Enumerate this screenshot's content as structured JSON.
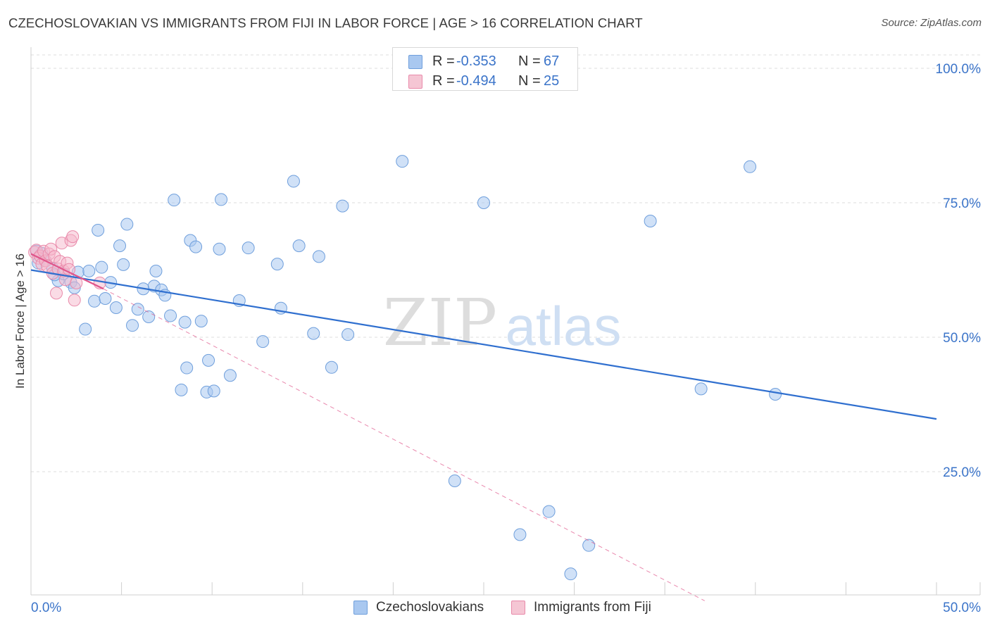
{
  "header": {
    "title": "CZECHOSLOVAKIAN VS IMMIGRANTS FROM FIJI IN LABOR FORCE | AGE > 16 CORRELATION CHART",
    "source": "Source: ZipAtlas.com"
  },
  "watermark": {
    "zip": "ZIP",
    "atlas": "atlas"
  },
  "legend": {
    "rows": [
      {
        "r_label": "R = ",
        "r_value": "-0.353",
        "n_label": "N = ",
        "n_value": "67"
      },
      {
        "r_label": "R = ",
        "r_value": "-0.494",
        "n_label": "N = ",
        "n_value": "25"
      }
    ]
  },
  "colors": {
    "blue_fill": "#a9c8f0",
    "blue_stroke": "#6f9fdc",
    "blue_line": "#2f6fcf",
    "pink_fill": "#f5b8cb",
    "pink_stroke": "#e98aaa",
    "pink_line": "#e0558a",
    "axis_label": "#3b74c9",
    "grid": "#dcdcdc"
  },
  "chart_data": {
    "type": "scatter",
    "title": "CZECHOSLOVAKIAN VS IMMIGRANTS FROM FIJI IN LABOR FORCE | AGE > 16 CORRELATION CHART",
    "xlabel": "",
    "ylabel": "In Labor Force | Age > 16",
    "xlim": [
      0,
      50
    ],
    "ylim": [
      0,
      105
    ],
    "x_tick_labels": [
      "0.0%",
      "50.0%"
    ],
    "y_ticks": [
      25,
      50,
      75,
      100
    ],
    "y_tick_labels": [
      "25.0%",
      "50.0%",
      "75.0%",
      "100.0%"
    ],
    "grid": true,
    "legend_position": "top-center",
    "series": [
      {
        "name": "Czechoslovakians",
        "color": "#a9c8f0",
        "points": [
          [
            0.4,
            63.8
          ],
          [
            0.8,
            64.2
          ],
          [
            1.2,
            62.8
          ],
          [
            1.5,
            60.5
          ],
          [
            1.8,
            61.8
          ],
          [
            2.2,
            60.2
          ],
          [
            2.4,
            59.2
          ],
          [
            2.6,
            62.1
          ],
          [
            3.0,
            51.5
          ],
          [
            3.2,
            62.3
          ],
          [
            3.5,
            56.7
          ],
          [
            3.7,
            69.9
          ],
          [
            3.9,
            63.0
          ],
          [
            4.1,
            57.2
          ],
          [
            4.4,
            60.2
          ],
          [
            4.7,
            55.5
          ],
          [
            4.9,
            67.0
          ],
          [
            5.1,
            63.5
          ],
          [
            5.3,
            71.0
          ],
          [
            5.6,
            52.2
          ],
          [
            5.9,
            55.2
          ],
          [
            6.2,
            59.0
          ],
          [
            6.5,
            53.8
          ],
          [
            6.8,
            59.5
          ],
          [
            6.9,
            62.3
          ],
          [
            7.2,
            58.8
          ],
          [
            7.4,
            57.8
          ],
          [
            7.7,
            54.0
          ],
          [
            7.9,
            75.5
          ],
          [
            8.3,
            40.2
          ],
          [
            8.5,
            52.8
          ],
          [
            8.6,
            44.3
          ],
          [
            8.8,
            68.0
          ],
          [
            9.1,
            66.8
          ],
          [
            9.4,
            53.0
          ],
          [
            9.7,
            39.8
          ],
          [
            9.8,
            45.7
          ],
          [
            10.1,
            40.0
          ],
          [
            10.4,
            66.4
          ],
          [
            10.5,
            75.6
          ],
          [
            11.0,
            42.9
          ],
          [
            11.5,
            56.8
          ],
          [
            12.0,
            66.6
          ],
          [
            12.8,
            49.2
          ],
          [
            13.6,
            63.6
          ],
          [
            13.8,
            55.4
          ],
          [
            14.5,
            79.0
          ],
          [
            14.8,
            67.0
          ],
          [
            15.6,
            50.7
          ],
          [
            15.9,
            65.0
          ],
          [
            16.6,
            44.4
          ],
          [
            17.2,
            74.4
          ],
          [
            17.5,
            50.5
          ],
          [
            20.5,
            82.7
          ],
          [
            23.4,
            23.3
          ],
          [
            25.0,
            75.0
          ],
          [
            27.0,
            13.3
          ],
          [
            28.6,
            17.6
          ],
          [
            29.8,
            6.0
          ],
          [
            30.8,
            11.3
          ],
          [
            34.2,
            71.6
          ],
          [
            37.0,
            40.4
          ],
          [
            39.7,
            81.7
          ],
          [
            41.1,
            39.4
          ],
          [
            0.3,
            66.0
          ],
          [
            0.6,
            65.6
          ],
          [
            1.3,
            61.6
          ]
        ]
      },
      {
        "name": "Immigrants from Fiji",
        "color": "#f5b8cb",
        "points": [
          [
            0.2,
            65.8
          ],
          [
            0.3,
            66.2
          ],
          [
            0.4,
            64.7
          ],
          [
            0.5,
            65.1
          ],
          [
            0.6,
            63.6
          ],
          [
            0.7,
            66.0
          ],
          [
            0.8,
            64.2
          ],
          [
            0.9,
            63.2
          ],
          [
            1.0,
            65.5
          ],
          [
            1.1,
            66.4
          ],
          [
            1.2,
            61.9
          ],
          [
            1.3,
            65.0
          ],
          [
            1.4,
            58.2
          ],
          [
            1.5,
            62.7
          ],
          [
            1.6,
            64.1
          ],
          [
            1.7,
            67.5
          ],
          [
            1.8,
            62.3
          ],
          [
            1.9,
            60.7
          ],
          [
            2.0,
            63.8
          ],
          [
            2.1,
            62.6
          ],
          [
            2.2,
            68.0
          ],
          [
            2.3,
            68.7
          ],
          [
            2.5,
            60.1
          ],
          [
            2.4,
            56.9
          ],
          [
            3.8,
            60.1
          ]
        ]
      }
    ],
    "trend_lines": [
      {
        "series": "Czechoslovakians",
        "x": [
          0,
          50
        ],
        "y": [
          62.5,
          34.8
        ],
        "style": "solid"
      },
      {
        "series": "Immigrants from Fiji",
        "x": [
          0,
          4
        ],
        "y": [
          65.5,
          59.0
        ],
        "style": "solid"
      },
      {
        "series": "Immigrants from Fiji",
        "x": [
          4,
          37.2
        ],
        "y": [
          59.0,
          1.0
        ],
        "style": "dashed"
      }
    ]
  },
  "bottom_legend": {
    "items": [
      {
        "label": "Czechoslovakians"
      },
      {
        "label": "Immigrants from Fiji"
      }
    ]
  }
}
